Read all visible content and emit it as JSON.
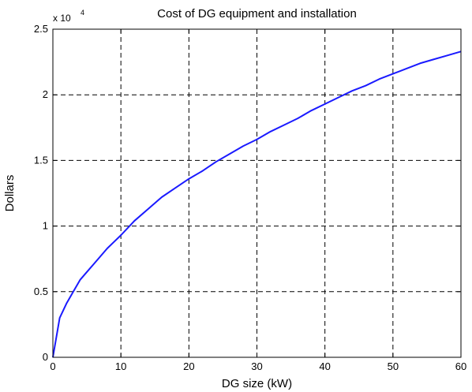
{
  "chart_data": {
    "type": "line",
    "title": "Cost of DG equipment and installation",
    "xlabel": "DG size (kW)",
    "ylabel": "Dollars",
    "y_multiplier": {
      "base": "x 10",
      "exponent": "4"
    },
    "xlim": [
      0,
      60
    ],
    "ylim": [
      0,
      25000
    ],
    "xticks": [
      0,
      10,
      20,
      30,
      40,
      50,
      60
    ],
    "xtick_labels": [
      "0",
      "10",
      "20",
      "30",
      "40",
      "50",
      "60"
    ],
    "yticks": [
      0,
      5000,
      10000,
      15000,
      20000,
      25000
    ],
    "ytick_labels": [
      "0",
      "0.5",
      "1",
      "1.5",
      "2",
      "2.5"
    ],
    "grid": true,
    "line_color": "#1a1aff",
    "series": [
      {
        "x": [
          0,
          1,
          2,
          3,
          4,
          5,
          6,
          7,
          8,
          9,
          10,
          12,
          14,
          16,
          18,
          20,
          22,
          24,
          26,
          28,
          30,
          32,
          34,
          36,
          38,
          40,
          42,
          44,
          46,
          48,
          50,
          52,
          54,
          56,
          58,
          60
        ],
        "y": [
          0,
          3000,
          4100,
          5000,
          5900,
          6500,
          7100,
          7700,
          8300,
          8800,
          9300,
          10400,
          11300,
          12200,
          12900,
          13600,
          14200,
          14900,
          15500,
          16100,
          16600,
          17200,
          17700,
          18200,
          18800,
          19300,
          19800,
          20300,
          20700,
          21200,
          21600,
          22000,
          22400,
          22700,
          23000,
          23300
        ]
      }
    ]
  }
}
